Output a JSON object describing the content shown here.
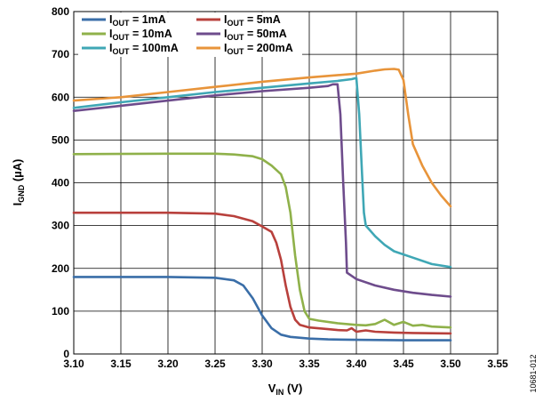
{
  "figure_id": "10681-012",
  "chart_data": {
    "type": "line",
    "xlabel": {
      "main": "V",
      "sub": "IN",
      "unit": " (V)"
    },
    "ylabel": {
      "main": "I",
      "sub": "GND",
      "unit": " (µA)"
    },
    "xlim": [
      3.1,
      3.55
    ],
    "ylim": [
      0,
      800
    ],
    "x_ticks": [
      "3.10",
      "3.15",
      "3.20",
      "3.25",
      "3.30",
      "3.35",
      "3.40",
      "3.45",
      "3.50",
      "3.55"
    ],
    "y_ticks": [
      "0",
      "100",
      "200",
      "300",
      "400",
      "500",
      "600",
      "700",
      "800"
    ],
    "grid": true,
    "legend_position": "top-left",
    "series": [
      {
        "name": "1mA",
        "label_main": "I",
        "label_sub": "OUT",
        "label_rest": " = 1mA",
        "color": "#3A6EA8",
        "points": [
          [
            3.1,
            180
          ],
          [
            3.2,
            180
          ],
          [
            3.25,
            178
          ],
          [
            3.27,
            172
          ],
          [
            3.28,
            160
          ],
          [
            3.29,
            130
          ],
          [
            3.3,
            90
          ],
          [
            3.31,
            60
          ],
          [
            3.32,
            45
          ],
          [
            3.33,
            40
          ],
          [
            3.35,
            36
          ],
          [
            3.37,
            34
          ],
          [
            3.4,
            33
          ],
          [
            3.45,
            32
          ],
          [
            3.5,
            32
          ]
        ]
      },
      {
        "name": "5mA",
        "label_main": "I",
        "label_sub": "OUT",
        "label_rest": " = 5mA",
        "color": "#B8403C",
        "points": [
          [
            3.1,
            330
          ],
          [
            3.2,
            330
          ],
          [
            3.25,
            328
          ],
          [
            3.27,
            322
          ],
          [
            3.29,
            310
          ],
          [
            3.3,
            298
          ],
          [
            3.31,
            285
          ],
          [
            3.315,
            260
          ],
          [
            3.32,
            220
          ],
          [
            3.325,
            160
          ],
          [
            3.33,
            110
          ],
          [
            3.335,
            80
          ],
          [
            3.34,
            68
          ],
          [
            3.35,
            62
          ],
          [
            3.37,
            58
          ],
          [
            3.38,
            56
          ],
          [
            3.39,
            55
          ],
          [
            3.395,
            60
          ],
          [
            3.4,
            52
          ],
          [
            3.41,
            55
          ],
          [
            3.42,
            52
          ],
          [
            3.44,
            50
          ],
          [
            3.46,
            49
          ],
          [
            3.5,
            48
          ]
        ]
      },
      {
        "name": "10mA",
        "label_main": "I",
        "label_sub": "OUT",
        "label_rest": " = 10mA",
        "color": "#8FB14A",
        "points": [
          [
            3.1,
            467
          ],
          [
            3.2,
            468
          ],
          [
            3.25,
            468
          ],
          [
            3.27,
            466
          ],
          [
            3.29,
            462
          ],
          [
            3.3,
            455
          ],
          [
            3.31,
            440
          ],
          [
            3.32,
            420
          ],
          [
            3.325,
            390
          ],
          [
            3.33,
            330
          ],
          [
            3.335,
            230
          ],
          [
            3.34,
            150
          ],
          [
            3.345,
            100
          ],
          [
            3.35,
            82
          ],
          [
            3.36,
            78
          ],
          [
            3.38,
            72
          ],
          [
            3.4,
            68
          ],
          [
            3.41,
            67
          ],
          [
            3.42,
            70
          ],
          [
            3.43,
            80
          ],
          [
            3.44,
            68
          ],
          [
            3.45,
            75
          ],
          [
            3.46,
            66
          ],
          [
            3.47,
            68
          ],
          [
            3.48,
            64
          ],
          [
            3.5,
            62
          ]
        ]
      },
      {
        "name": "50mA",
        "label_main": "I",
        "label_sub": "OUT",
        "label_rest": " = 50mA",
        "color": "#6E4C8C",
        "points": [
          [
            3.1,
            568
          ],
          [
            3.15,
            580
          ],
          [
            3.2,
            592
          ],
          [
            3.25,
            604
          ],
          [
            3.3,
            614
          ],
          [
            3.35,
            622
          ],
          [
            3.37,
            626
          ],
          [
            3.375,
            630
          ],
          [
            3.38,
            630
          ],
          [
            3.383,
            560
          ],
          [
            3.386,
            400
          ],
          [
            3.389,
            260
          ],
          [
            3.39,
            190
          ],
          [
            3.4,
            175
          ],
          [
            3.42,
            160
          ],
          [
            3.44,
            150
          ],
          [
            3.46,
            143
          ],
          [
            3.48,
            138
          ],
          [
            3.5,
            134
          ]
        ]
      },
      {
        "name": "100mA",
        "label_main": "I",
        "label_sub": "OUT",
        "label_rest": " = 100mA",
        "color": "#3FA7B5",
        "points": [
          [
            3.1,
            575
          ],
          [
            3.15,
            588
          ],
          [
            3.2,
            600
          ],
          [
            3.25,
            612
          ],
          [
            3.3,
            622
          ],
          [
            3.35,
            632
          ],
          [
            3.38,
            638
          ],
          [
            3.395,
            642
          ],
          [
            3.4,
            645
          ],
          [
            3.403,
            560
          ],
          [
            3.406,
            420
          ],
          [
            3.408,
            330
          ],
          [
            3.41,
            300
          ],
          [
            3.42,
            275
          ],
          [
            3.43,
            255
          ],
          [
            3.44,
            240
          ],
          [
            3.46,
            225
          ],
          [
            3.48,
            210
          ],
          [
            3.5,
            203
          ]
        ]
      },
      {
        "name": "200mA",
        "label_main": "I",
        "label_sub": "OUT",
        "label_rest": " = 200mA",
        "color": "#E8943A",
        "points": [
          [
            3.1,
            592
          ],
          [
            3.15,
            600
          ],
          [
            3.2,
            612
          ],
          [
            3.25,
            624
          ],
          [
            3.3,
            636
          ],
          [
            3.35,
            646
          ],
          [
            3.4,
            655
          ],
          [
            3.42,
            662
          ],
          [
            3.43,
            665
          ],
          [
            3.44,
            666
          ],
          [
            3.445,
            664
          ],
          [
            3.45,
            640
          ],
          [
            3.455,
            560
          ],
          [
            3.46,
            490
          ],
          [
            3.47,
            440
          ],
          [
            3.48,
            400
          ],
          [
            3.49,
            370
          ],
          [
            3.5,
            345
          ]
        ]
      }
    ]
  }
}
